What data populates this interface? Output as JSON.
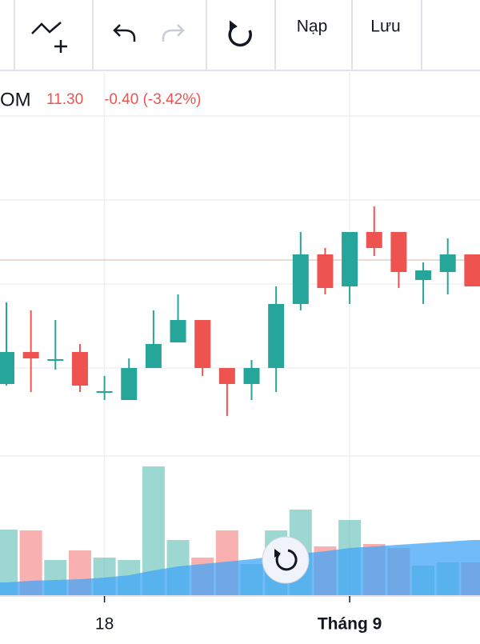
{
  "toolbar": {
    "load": "Nạp",
    "save": "Lưu"
  },
  "chart_data": {
    "type": "candlestick",
    "symbol": "OM",
    "last": "11.30",
    "change": "-0.40 (-3.42%)",
    "categories": [
      null,
      null,
      null,
      null,
      "18",
      null,
      null,
      null,
      null,
      null,
      null,
      null,
      null,
      null,
      "Tháng 9",
      null,
      null,
      null,
      null,
      null
    ],
    "open": [
      10.08,
      10.48,
      10.37,
      10.48,
      9.98,
      9.88,
      10.28,
      10.6,
      10.88,
      10.28,
      10.08,
      10.28,
      11.08,
      11.7,
      11.3,
      11.98,
      11.98,
      11.38,
      11.48,
      11.7
    ],
    "high": [
      11.1,
      11.0,
      10.88,
      10.58,
      10.18,
      10.4,
      11.0,
      11.2,
      10.88,
      10.28,
      10.38,
      11.3,
      11.98,
      11.78,
      11.98,
      12.3,
      11.98,
      11.6,
      11.9,
      11.7
    ],
    "low": [
      10.06,
      9.98,
      10.26,
      9.98,
      9.88,
      9.88,
      10.28,
      10.6,
      10.18,
      9.68,
      9.88,
      9.98,
      11.0,
      11.2,
      11.08,
      11.68,
      11.28,
      11.08,
      11.2,
      11.3
    ],
    "close": [
      10.48,
      10.4,
      10.39,
      10.06,
      9.99,
      10.28,
      10.58,
      10.88,
      10.28,
      10.08,
      10.28,
      11.08,
      11.7,
      11.28,
      11.98,
      11.78,
      11.48,
      11.5,
      11.7,
      11.3
    ],
    "volume": [
      83,
      82,
      45,
      57,
      48,
      45,
      162,
      70,
      48,
      82,
      40,
      82,
      108,
      62,
      95,
      65,
      60,
      38,
      42,
      42
    ],
    "volume_ma": [
      17,
      19,
      20,
      21,
      23,
      26,
      32,
      37,
      40,
      43,
      46,
      50,
      53,
      56,
      60,
      62,
      64,
      66,
      68,
      70
    ],
    "ylim": [
      9.08,
      13.98
    ],
    "volume_ylim": [
      0,
      200
    ],
    "price_line": 11.63,
    "up_color": "#26a69a",
    "down_color": "#ef5350",
    "volume_ma_color": "#42a5f5"
  }
}
